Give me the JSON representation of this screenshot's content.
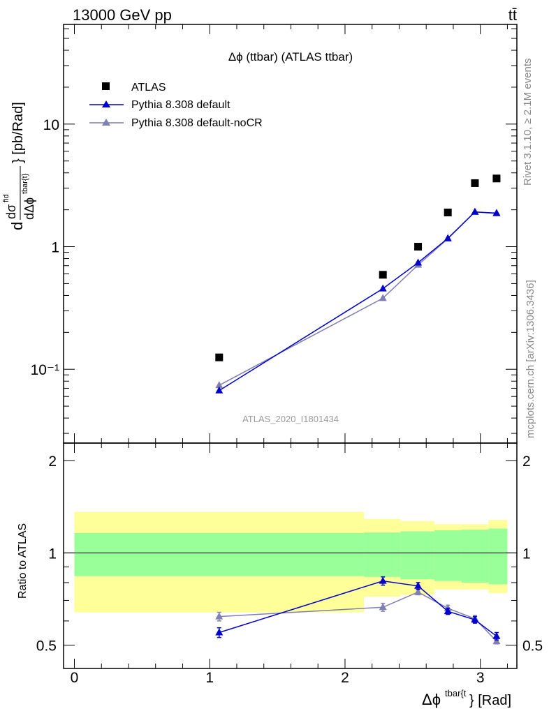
{
  "header": {
    "energy_label": "13000 GeV pp",
    "process_label": "tt̄"
  },
  "side": {
    "rivet_label": "Rivet 3.1.10, ≥ 2.1M events",
    "source_label": "mcplots.cern.ch [arXiv:1306.3436]"
  },
  "colors": {
    "atlas": "#000000",
    "pythia_default": "#0000cc",
    "pythia_nocr": "#7f7fb2",
    "band_inner": "#99ff99",
    "band_outer": "#ffff99"
  },
  "chart_data": [
    {
      "type": "scatter",
      "title": "Δϕ (ttbar) (ATLAS ttbar)",
      "ylabel": "dσ^fid / dΔϕ^{tbar{t}} [pb/Rad]",
      "analysis_label": "ATLAS_2020_I1801434",
      "yscale": "log",
      "xlim": [
        -0.08,
        3.27
      ],
      "ylim": [
        0.025,
        65
      ],
      "ytick_labels": [
        "10⁻¹",
        "1",
        "10"
      ],
      "legend_position": "top-left",
      "series": [
        {
          "name": "ATLAS",
          "marker": "square",
          "x": [
            1.07,
            2.28,
            2.54,
            2.76,
            2.96,
            3.12
          ],
          "y": [
            0.125,
            0.59,
            1.0,
            1.9,
            3.3,
            3.6
          ]
        },
        {
          "name": "Pythia 8.308 default",
          "marker": "triangle",
          "line": true,
          "x": [
            1.07,
            2.28,
            2.54,
            2.76,
            2.96,
            3.12
          ],
          "y": [
            0.067,
            0.455,
            0.74,
            1.17,
            1.92,
            1.88
          ]
        },
        {
          "name": "Pythia 8.308 default-noCR",
          "marker": "triangle",
          "line": true,
          "x": [
            1.07,
            2.28,
            2.54,
            2.76,
            2.96,
            3.12
          ],
          "y": [
            0.074,
            0.38,
            0.71,
            1.16,
            1.92,
            1.86
          ]
        }
      ]
    },
    {
      "type": "scatter",
      "ylabel": "Ratio to ATLAS",
      "xlabel": "Δϕ^{tbar{t}} [Rad]",
      "xlim": [
        -0.08,
        3.27
      ],
      "ylim": [
        0.42,
        2.28
      ],
      "xtick_labels": [
        "0",
        "1",
        "2",
        "3"
      ],
      "ytick_labels": [
        "0.5",
        "1",
        "2"
      ],
      "reference_line": 1,
      "uncertainty_bands": [
        {
          "x0": 0.0,
          "x1": 2.14,
          "inner": [
            0.84,
            1.16
          ],
          "outer": [
            0.64,
            1.36
          ]
        },
        {
          "x0": 2.14,
          "x1": 2.41,
          "inner": [
            0.835,
            1.165
          ],
          "outer": [
            0.72,
            1.29
          ]
        },
        {
          "x0": 2.41,
          "x1": 2.66,
          "inner": [
            0.82,
            1.175
          ],
          "outer": [
            0.73,
            1.27
          ]
        },
        {
          "x0": 2.66,
          "x1": 2.86,
          "inner": [
            0.81,
            1.185
          ],
          "outer": [
            0.76,
            1.24
          ]
        },
        {
          "x0": 2.86,
          "x1": 3.06,
          "inner": [
            0.8,
            1.19
          ],
          "outer": [
            0.76,
            1.24
          ]
        },
        {
          "x0": 3.06,
          "x1": 3.2,
          "inner": [
            0.79,
            1.2
          ],
          "outer": [
            0.74,
            1.28
          ]
        }
      ],
      "series": [
        {
          "name": "Pythia 8.308 default",
          "x": [
            1.07,
            2.28,
            2.54,
            2.76,
            2.96,
            3.12
          ],
          "y": [
            0.55,
            0.81,
            0.78,
            0.645,
            0.605,
            0.535
          ],
          "yerr": [
            0.02,
            0.025,
            0.02,
            0.015,
            0.015,
            0.015
          ]
        },
        {
          "name": "Pythia 8.308 default-noCR",
          "x": [
            1.07,
            2.28,
            2.54,
            2.76,
            2.96,
            3.12
          ],
          "y": [
            0.62,
            0.665,
            0.745,
            0.66,
            0.61,
            0.515
          ],
          "yerr": [
            0.02,
            0.02,
            0.015,
            0.015,
            0.015,
            0.01
          ]
        }
      ]
    }
  ]
}
